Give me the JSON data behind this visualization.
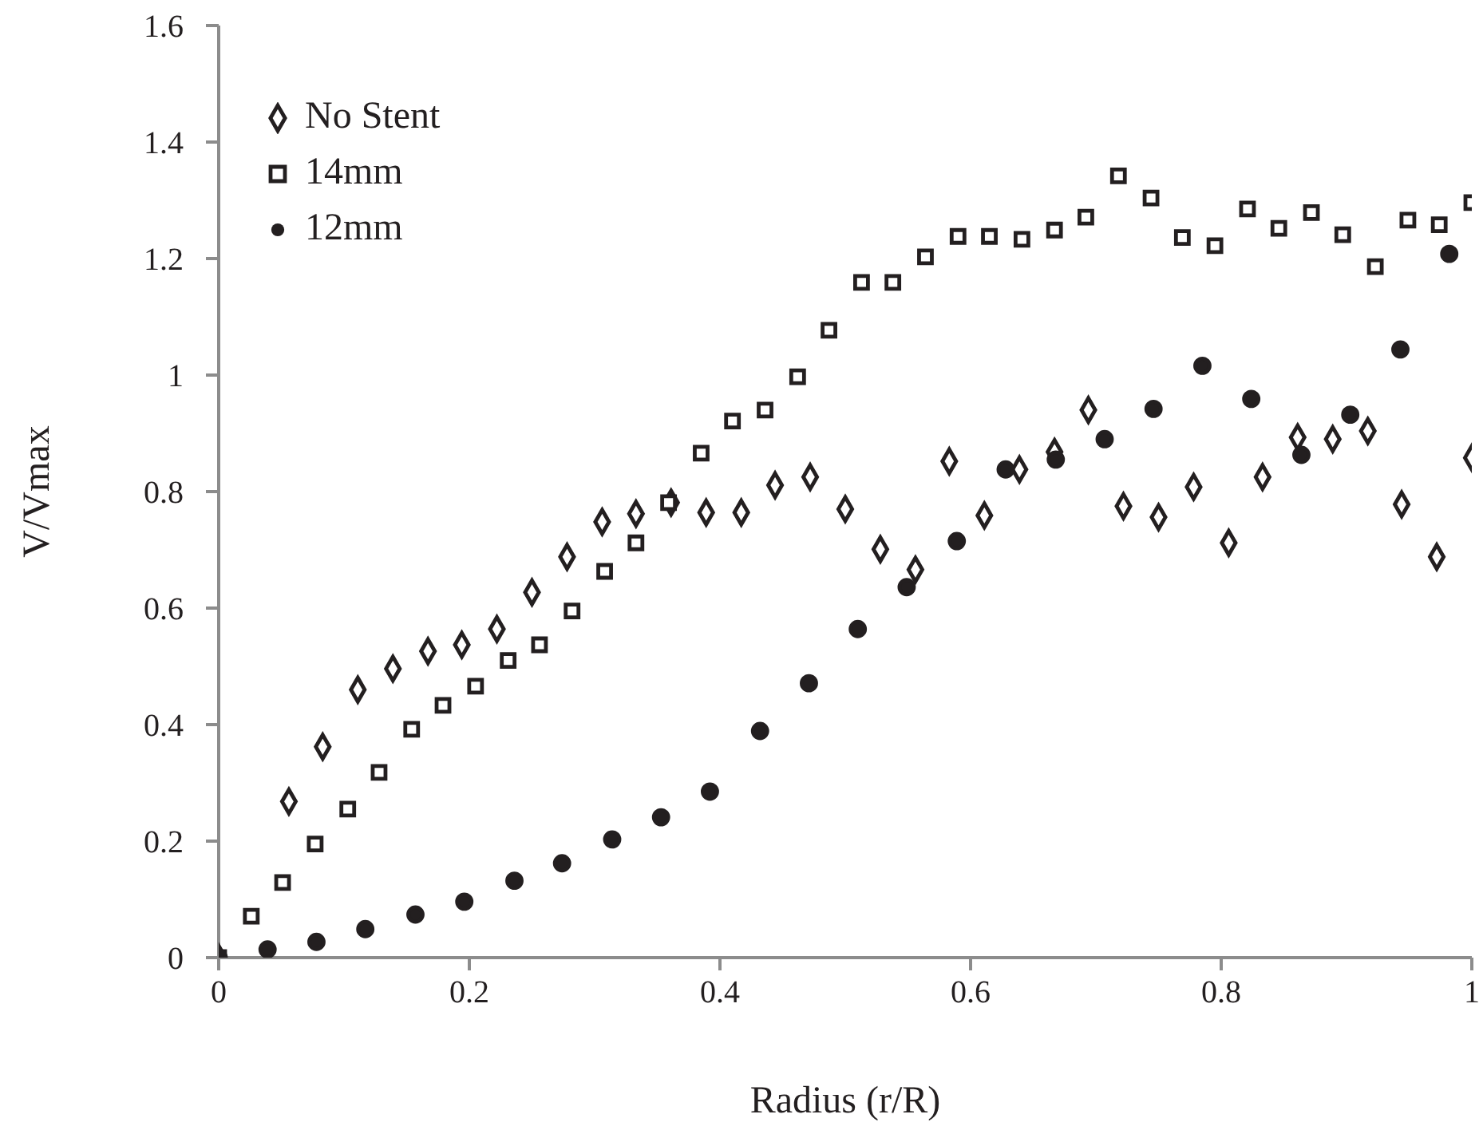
{
  "chart_data": {
    "type": "scatter",
    "xlabel": "Radius (r/R)",
    "ylabel": "V/Vmax",
    "xlim": [
      0,
      1
    ],
    "xticks": [
      0,
      0.2,
      0.4,
      0.6,
      0.8,
      1
    ],
    "ylim": [
      0,
      1.6
    ],
    "yticks": [
      0,
      0.2,
      0.4,
      0.6,
      0.8,
      1,
      1.2,
      1.4,
      1.6
    ],
    "grid": false,
    "legend": "top left",
    "series": [
      {
        "name": "No Stent",
        "color": "#231f20",
        "marker": "diamond",
        "x": [
          0,
          0.056,
          0.083,
          0.111,
          0.139,
          0.167,
          0.194,
          0.222,
          0.25,
          0.278,
          0.306,
          0.333,
          0.361,
          0.389,
          0.417,
          0.444,
          0.472,
          0.5,
          0.528,
          0.556,
          0.583,
          0.611,
          0.639,
          0.667,
          0.694,
          0.722,
          0.75,
          0.778,
          0.806,
          0.833,
          0.861,
          0.889,
          0.917,
          0.944,
          0.972,
          1
        ],
        "values": [
          0,
          0.268,
          0.362,
          0.46,
          0.496,
          0.526,
          0.537,
          0.564,
          0.627,
          0.688,
          0.748,
          0.762,
          0.781,
          0.764,
          0.764,
          0.811,
          0.825,
          0.77,
          0.701,
          0.666,
          0.852,
          0.759,
          0.838,
          0.868,
          0.94,
          0.775,
          0.756,
          0.808,
          0.712,
          0.825,
          0.893,
          0.89,
          0.904,
          0.778,
          0.688,
          0.858
        ]
      },
      {
        "name": "14mm",
        "color": "#231f20",
        "marker": "square",
        "x": [
          0,
          0.026,
          0.051,
          0.077,
          0.103,
          0.128,
          0.154,
          0.179,
          0.205,
          0.231,
          0.256,
          0.282,
          0.308,
          0.333,
          0.359,
          0.385,
          0.41,
          0.436,
          0.462,
          0.487,
          0.513,
          0.538,
          0.564,
          0.59,
          0.615,
          0.641,
          0.667,
          0.692,
          0.718,
          0.744,
          0.769,
          0.795,
          0.821,
          0.846,
          0.872,
          0.897,
          0.923,
          0.949,
          0.974,
          1
        ],
        "values": [
          0,
          0.071,
          0.129,
          0.195,
          0.255,
          0.318,
          0.392,
          0.433,
          0.466,
          0.51,
          0.537,
          0.595,
          0.663,
          0.712,
          0.781,
          0.866,
          0.921,
          0.94,
          0.997,
          1.077,
          1.159,
          1.159,
          1.203,
          1.238,
          1.238,
          1.233,
          1.249,
          1.271,
          1.342,
          1.304,
          1.236,
          1.222,
          1.285,
          1.252,
          1.279,
          1.241,
          1.186,
          1.266,
          1.258,
          1.296
        ]
      },
      {
        "name": "12mm",
        "color": "#231f20",
        "marker": "circle",
        "x": [
          0,
          0.039,
          0.078,
          0.117,
          0.157,
          0.196,
          0.236,
          0.274,
          0.314,
          0.353,
          0.392,
          0.432,
          0.471,
          0.51,
          0.549,
          0.589,
          0.628,
          0.668,
          0.707,
          0.746,
          0.785,
          0.824,
          0.864,
          0.903,
          0.943,
          0.982
        ],
        "values": [
          0,
          0.014,
          0.027,
          0.049,
          0.074,
          0.096,
          0.132,
          0.162,
          0.203,
          0.241,
          0.285,
          0.389,
          0.471,
          0.564,
          0.636,
          0.715,
          0.838,
          0.855,
          0.89,
          0.942,
          1.016,
          0.959,
          0.863,
          0.932,
          1.044,
          1.208
        ]
      }
    ]
  }
}
